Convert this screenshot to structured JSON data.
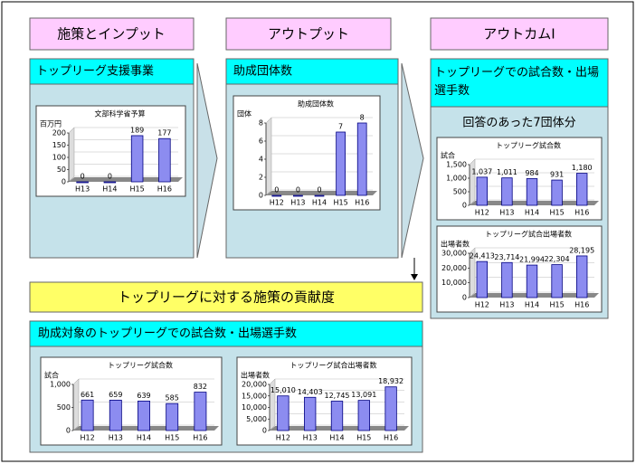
{
  "diagram": {
    "columns": [
      "施策とインプット",
      "アウトプット",
      "アウトカムⅠ"
    ],
    "panels": [
      "トップリーグ支援事業",
      "助成団体数",
      "トップリーグでの試合数・出場選手数"
    ],
    "subheader": "回答のあった7団体分",
    "contribution": "トップリーグに対する施策の貢献度",
    "bottom_panel": "助成対象のトップリーグでの試合数・出場選手数"
  },
  "chart_data": [
    {
      "type": "bar",
      "title": "文部科学省予算",
      "y_label": "百万円",
      "categories": [
        "H13",
        "H14",
        "H15",
        "H16"
      ],
      "values": [
        0,
        0,
        189,
        177
      ],
      "ylim": [
        0,
        200
      ],
      "yticks": [
        0,
        50,
        100,
        150,
        200
      ],
      "color": "#8c8cf0",
      "grid": true
    },
    {
      "type": "bar",
      "title": "助成団体数",
      "y_label": "団体",
      "categories": [
        "H12",
        "H13",
        "H14",
        "H15",
        "H16"
      ],
      "values": [
        0,
        0,
        0,
        7,
        8
      ],
      "ylim": [
        0,
        8
      ],
      "yticks": [
        0,
        2,
        4,
        6,
        8
      ],
      "color": "#8c8cf0",
      "grid": true
    },
    {
      "type": "bar",
      "title": "トップリーグ試合数",
      "y_label": "試合",
      "categories": [
        "H12",
        "H13",
        "H14",
        "H15",
        "H16"
      ],
      "values": [
        1037,
        1011,
        984,
        931,
        1180
      ],
      "value_labels": [
        "1,037",
        "1,011",
        "984",
        "931",
        "1,180"
      ],
      "ylim": [
        0,
        1500
      ],
      "yticks": [
        0,
        500,
        {
          "value": 1000,
          "label": "1,000"
        },
        {
          "value": 1500,
          "label": "1,500"
        }
      ],
      "color": "#8c8cf0",
      "grid": true
    },
    {
      "type": "bar",
      "title": "トップリーグ試合出場者数",
      "y_label": "出場者数",
      "categories": [
        "H12",
        "H13",
        "H14",
        "H15",
        "H16"
      ],
      "values": [
        24413,
        23714,
        21994,
        22304,
        28195
      ],
      "value_labels": [
        "24,413",
        "23,714",
        "21,994",
        "22,304",
        "28,195"
      ],
      "ylim": [
        0,
        30000
      ],
      "yticks": [
        0,
        {
          "value": 10000,
          "label": "10,000"
        },
        {
          "value": 20000,
          "label": "20,000"
        },
        {
          "value": 30000,
          "label": "30,000"
        }
      ],
      "color": "#8c8cf0",
      "grid": true
    },
    {
      "type": "bar",
      "title": "トップリーグ試合数",
      "y_label": "試合",
      "categories": [
        "H12",
        "H13",
        "H14",
        "H15",
        "H16"
      ],
      "values": [
        661,
        659,
        639,
        585,
        832
      ],
      "ylim": [
        0,
        1000
      ],
      "yticks": [
        0,
        500,
        {
          "value": 1000,
          "label": "1,000"
        }
      ],
      "color": "#8c8cf0",
      "grid": true
    },
    {
      "type": "bar",
      "title": "トップリーグ試合出場者数",
      "y_label": "出場者数",
      "categories": [
        "H12",
        "H13",
        "H14",
        "H15",
        "H16"
      ],
      "values": [
        15010,
        14403,
        12745,
        13091,
        18932
      ],
      "value_labels": [
        "15,010",
        "14,403",
        "12,745",
        "13,091",
        "18,932"
      ],
      "ylim": [
        0,
        20000
      ],
      "yticks": [
        0,
        {
          "value": 5000,
          "label": "5,000"
        },
        {
          "value": 10000,
          "label": "10,000"
        },
        {
          "value": 15000,
          "label": "15,000"
        },
        {
          "value": 20000,
          "label": "20,000"
        }
      ],
      "color": "#8c8cf0",
      "grid": true
    }
  ]
}
